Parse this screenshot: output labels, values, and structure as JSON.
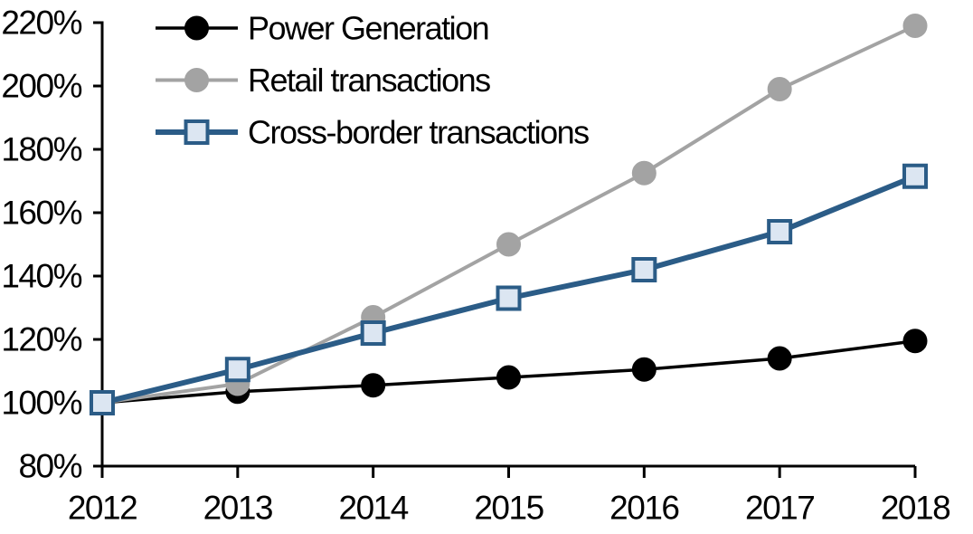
{
  "chart_data": {
    "type": "line",
    "title": "",
    "xlabel": "",
    "ylabel": "",
    "x_labels": [
      "2012",
      "2013",
      "2014",
      "2015",
      "2016",
      "2017",
      "2018"
    ],
    "y_tick_labels": [
      "80%",
      "100%",
      "120%",
      "140%",
      "160%",
      "180%",
      "200%",
      "220%"
    ],
    "y_tick_values": [
      80,
      100,
      120,
      140,
      160,
      180,
      200,
      220
    ],
    "ylim": [
      80,
      220
    ],
    "grid": false,
    "legend_position": "top-left",
    "axis_color": "#000000",
    "background_color": "#ffffff",
    "series": [
      {
        "name": "Power Generation",
        "line_color": "#000000",
        "line_width": 3.5,
        "marker": "circle",
        "marker_fill": "#000000",
        "marker_stroke": "#000000",
        "values": [
          100,
          103.5,
          105.5,
          108,
          110.5,
          114,
          119.5
        ]
      },
      {
        "name": "Retail transactions",
        "line_color": "#A3A3A3",
        "line_width": 4,
        "marker": "circle",
        "marker_fill": "#A3A3A3",
        "marker_stroke": "#A3A3A3",
        "values": [
          100,
          106,
          127,
          150,
          172.5,
          199,
          219
        ]
      },
      {
        "name": "Cross-border transactions",
        "line_color": "#2B5C87",
        "line_width": 6,
        "marker": "square",
        "marker_fill": "#DCE6F2",
        "marker_stroke": "#2B5C87",
        "values": [
          100,
          110.5,
          122,
          133,
          142,
          154,
          171.5
        ]
      }
    ]
  }
}
